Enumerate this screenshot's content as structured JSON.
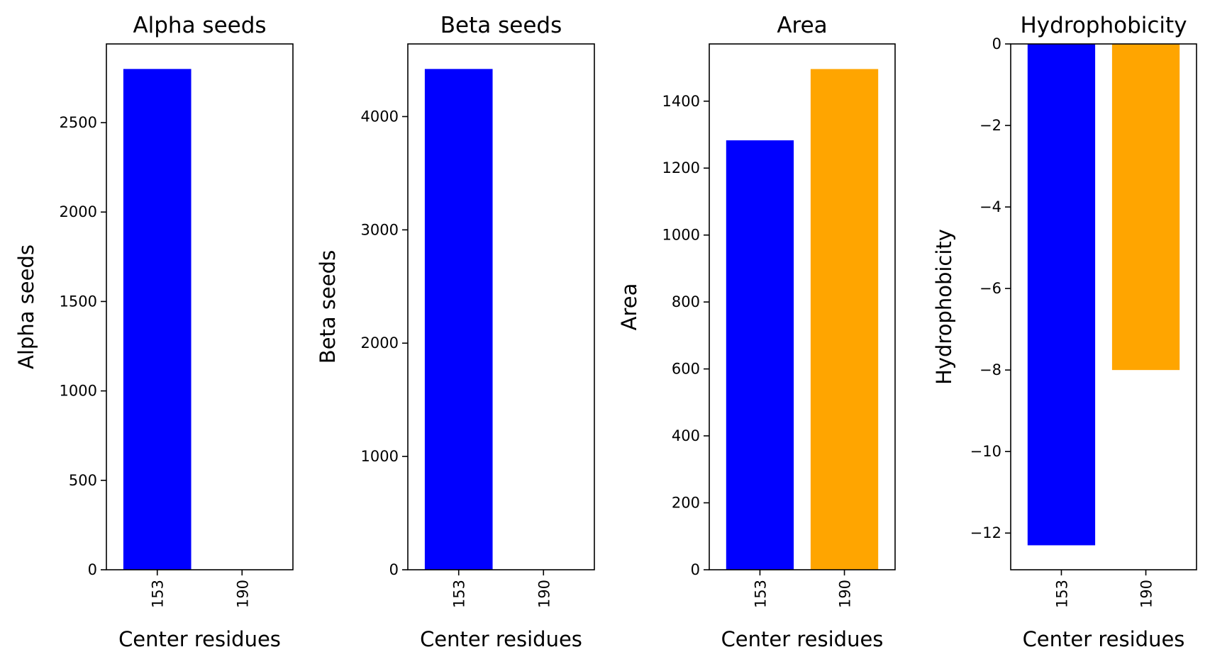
{
  "chart_data": [
    {
      "type": "bar",
      "title": "Alpha seeds",
      "xlabel": "Center residues",
      "ylabel": "Alpha seeds",
      "categories": [
        "153",
        "190"
      ],
      "values": [
        2800,
        0
      ],
      "colors": [
        "#0000ff",
        "#ffa500"
      ],
      "ylim": [
        0,
        2940
      ],
      "yticks": [
        0,
        500,
        1000,
        1500,
        2000,
        2500
      ],
      "ytick_labels": [
        "0",
        "500",
        "1000",
        "1500",
        "2000",
        "2500"
      ],
      "grid": false,
      "legend": "none"
    },
    {
      "type": "bar",
      "title": "Beta seeds",
      "xlabel": "Center residues",
      "ylabel": "Beta seeds",
      "categories": [
        "153",
        "190"
      ],
      "values": [
        4420,
        0
      ],
      "colors": [
        "#0000ff",
        "#ffa500"
      ],
      "ylim": [
        0,
        4641
      ],
      "yticks": [
        0,
        1000,
        2000,
        3000,
        4000
      ],
      "ytick_labels": [
        "0",
        "1000",
        "2000",
        "3000",
        "4000"
      ],
      "grid": false,
      "legend": "none"
    },
    {
      "type": "bar",
      "title": "Area",
      "xlabel": "Center residues",
      "ylabel": "Area",
      "categories": [
        "153",
        "190"
      ],
      "values": [
        1283,
        1496
      ],
      "colors": [
        "#0000ff",
        "#ffa500"
      ],
      "ylim": [
        0,
        1571
      ],
      "yticks": [
        0,
        200,
        400,
        600,
        800,
        1000,
        1200,
        1400
      ],
      "ytick_labels": [
        "0",
        "200",
        "400",
        "600",
        "800",
        "1000",
        "1200",
        "1400"
      ],
      "grid": false,
      "legend": "none"
    },
    {
      "type": "bar",
      "title": "Hydrophobicity",
      "xlabel": "Center residues",
      "ylabel": "Hydrophobicity",
      "categories": [
        "153",
        "190"
      ],
      "values": [
        -12.3,
        -8.0
      ],
      "colors": [
        "#0000ff",
        "#ffa500"
      ],
      "ylim": [
        -12.9,
        0
      ],
      "yticks": [
        0,
        -2,
        -4,
        -6,
        -8,
        -10,
        -12
      ],
      "ytick_labels": [
        "0",
        "−2",
        "−4",
        "−6",
        "−8",
        "−10",
        "−12"
      ],
      "grid": false,
      "legend": "none"
    }
  ]
}
